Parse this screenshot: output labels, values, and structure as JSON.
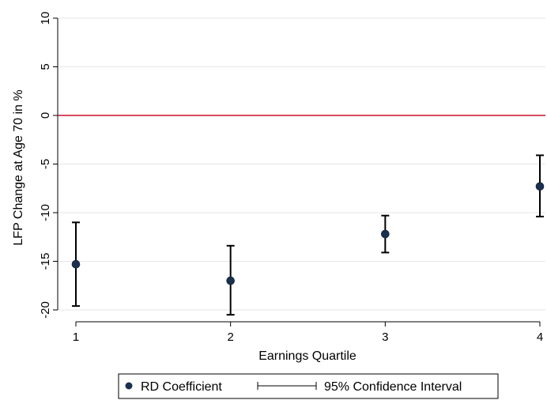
{
  "chart_data": {
    "type": "scatter",
    "xlabel": "Earnings Quartile",
    "ylabel": "LFP Change at Age 70 in %",
    "xlim": [
      1,
      4
    ],
    "ylim": [
      -20,
      10
    ],
    "x_ticks": [
      1,
      2,
      3,
      4
    ],
    "y_ticks": [
      10,
      5,
      0,
      -5,
      -10,
      -15,
      -20
    ],
    "grid": true,
    "reference_line": {
      "y": 0,
      "color": "#c8102e"
    },
    "series": [
      {
        "name": "RD Coefficient",
        "color": "#1a3050",
        "points": [
          {
            "x": 1,
            "y": -15.3
          },
          {
            "x": 2,
            "y": -17.0
          },
          {
            "x": 3,
            "y": -12.2
          },
          {
            "x": 4,
            "y": -7.3
          }
        ]
      },
      {
        "name": "95% Confidence Interval",
        "color": "#000000",
        "intervals": [
          {
            "x": 1,
            "low": -19.6,
            "high": -11.0
          },
          {
            "x": 2,
            "low": -20.5,
            "high": -13.4
          },
          {
            "x": 3,
            "low": -14.1,
            "high": -10.3
          },
          {
            "x": 4,
            "low": -10.4,
            "high": -4.1
          }
        ]
      }
    ],
    "legend": {
      "position": "bottom"
    }
  }
}
